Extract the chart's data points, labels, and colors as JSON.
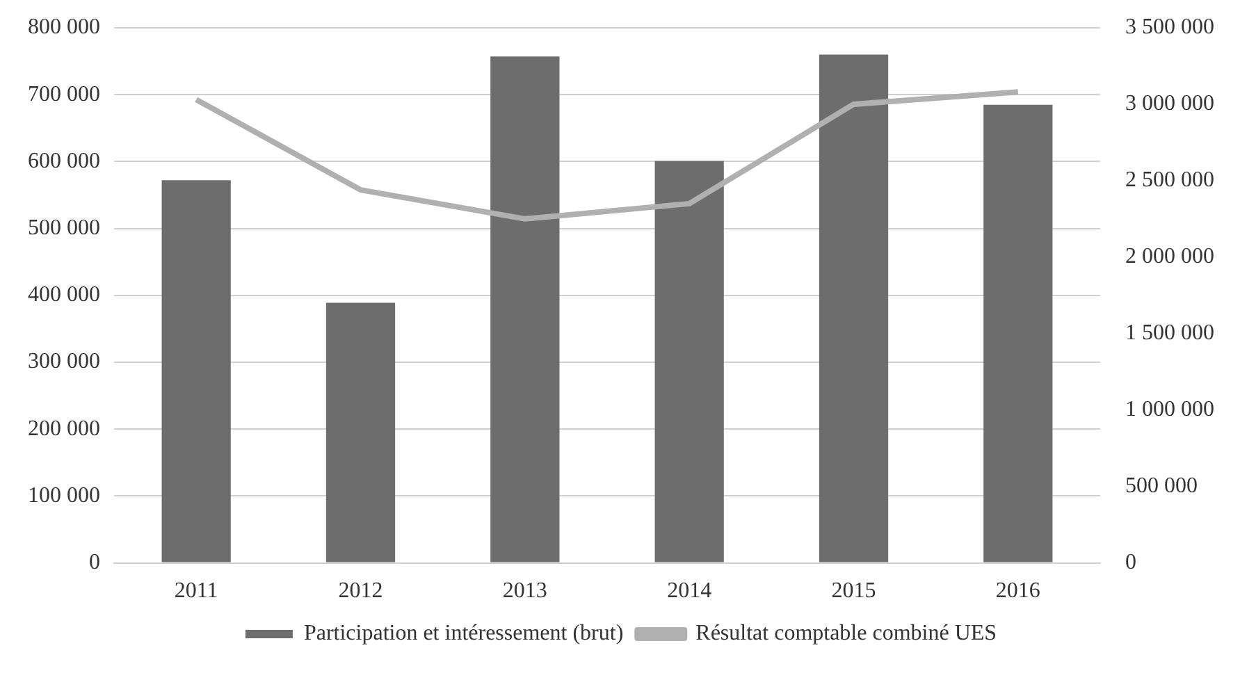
{
  "chart_data": {
    "type": "bar",
    "categories": [
      "2011",
      "2012",
      "2013",
      "2014",
      "2015",
      "2016"
    ],
    "series": [
      {
        "name": "Participation et intéressement (brut)",
        "color": "#6d6d6d",
        "values": [
          572000,
          389000,
          757000,
          601000,
          760000,
          685000
        ]
      },
      {
        "name": "Résultat comptable combiné UES",
        "type": "line",
        "axis": "y2",
        "color": "#b0b0b0",
        "values": [
          3030000,
          2440000,
          2250000,
          2350000,
          3000000,
          3080000
        ]
      }
    ],
    "ylim": [
      0,
      800000
    ],
    "yticks": [
      {
        "value": 0,
        "label": "0"
      },
      {
        "value": 100000,
        "label": "100 000"
      },
      {
        "value": 200000,
        "label": "200 000"
      },
      {
        "value": 300000,
        "label": "300 000"
      },
      {
        "value": 400000,
        "label": "400 000"
      },
      {
        "value": 500000,
        "label": "500 000"
      },
      {
        "value": 600000,
        "label": "600 000"
      },
      {
        "value": 700000,
        "label": "700 000"
      },
      {
        "value": 800000,
        "label": "800 000"
      }
    ],
    "y2lim": [
      0,
      3500000
    ],
    "y2ticks": [
      {
        "value": 0,
        "label": "0"
      },
      {
        "value": 500000,
        "label": "500 000"
      },
      {
        "value": 1000000,
        "label": "1 000 000"
      },
      {
        "value": 1500000,
        "label": "1 500 000"
      },
      {
        "value": 2000000,
        "label": "2 000 000"
      },
      {
        "value": 2500000,
        "label": "2 500 000"
      },
      {
        "value": 3000000,
        "label": "3 000 000"
      },
      {
        "value": 3500000,
        "label": "3 500 000"
      }
    ],
    "grid": "y",
    "legend": "bottom",
    "marker": "none"
  }
}
